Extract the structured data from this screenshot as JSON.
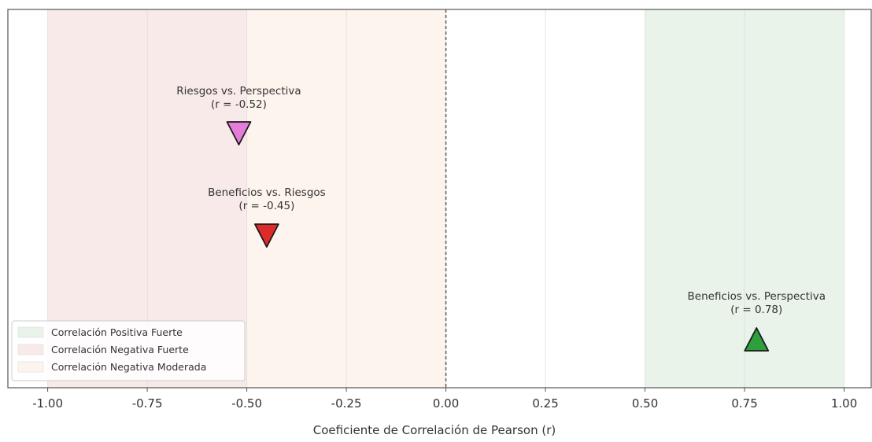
{
  "chart_data": {
    "type": "scatter",
    "title": "",
    "xlabel": "Coeficiente de Correlación de Pearson (r)",
    "ylabel": "",
    "xlim": [
      -1.1,
      1.07
    ],
    "xticks": [
      -1.0,
      -0.75,
      -0.5,
      -0.25,
      0.0,
      0.25,
      0.5,
      0.75,
      1.0
    ],
    "xtick_labels": [
      "-1.00",
      "-0.75",
      "-0.50",
      "-0.25",
      "0.00",
      "0.25",
      "0.50",
      "0.75",
      "1.00"
    ],
    "grid": "vertical",
    "reference_line": {
      "x": 0.0,
      "style": "dashed"
    },
    "bands": [
      {
        "label": "Correlación Positiva Fuerte",
        "from": 0.5,
        "to": 1.0,
        "color": "#e9f3ea"
      },
      {
        "label": "Correlación Negativa Fuerte",
        "from": -1.0,
        "to": -0.5,
        "color": "#f9eaea"
      },
      {
        "label": "Correlación Negativa Moderada",
        "from": -0.5,
        "to": 0.0,
        "color": "#fdf4ee"
      }
    ],
    "points": [
      {
        "line1": "Riesgos vs. Perspectiva",
        "line2": "(r = -0.52)",
        "r": -0.52,
        "marker": "triangle-down",
        "color": "#e37dd7"
      },
      {
        "line1": "Beneficios vs. Riesgos",
        "line2": "(r = -0.45)",
        "r": -0.45,
        "marker": "triangle-down",
        "color": "#dd2a2a"
      },
      {
        "line1": "Beneficios vs. Perspectiva",
        "line2": "(r = 0.78)",
        "r": 0.78,
        "marker": "triangle-up",
        "color": "#2f9e3c"
      }
    ],
    "legend": {
      "position": "lower-left",
      "entries": [
        "Correlación Positiva Fuerte",
        "Correlación Negativa Fuerte",
        "Correlación Negativa Moderada"
      ]
    }
  }
}
